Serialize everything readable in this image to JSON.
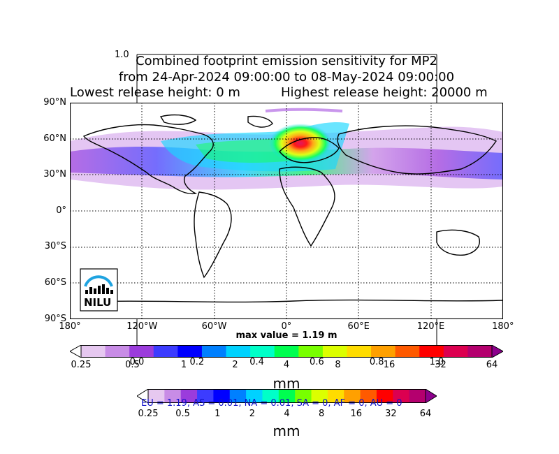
{
  "title": {
    "line1": "Combined footprint emission sensitivity for MP2",
    "line2": "from 24-Apr-2024 09:00:00 to 08-May-2024 09:00:00",
    "line3a": "Lowest release height: 0 m",
    "line3b": "Highest release height: 20000 m"
  },
  "inset_axis_top_label": "1.0",
  "map": {
    "lat_labels": [
      "90°N",
      "60°N",
      "30°N",
      "0°",
      "30°S",
      "60°S",
      "90°S"
    ],
    "lon_labels": [
      "180°",
      "120°W",
      "60°W",
      "0°",
      "60°E",
      "120°E",
      "180°"
    ],
    "max_value_label": "max value = 1.19 m",
    "logo_text": "NILU"
  },
  "colorbar_main": {
    "tick_labels": [
      "0.25",
      "0.5",
      "1",
      "2",
      "4",
      "8",
      "16",
      "32",
      "64"
    ],
    "unit": "mm",
    "colors": [
      "#ffffff",
      "#e6c8f0",
      "#c88ce6",
      "#9b3cdc",
      "#3c3cff",
      "#0000ff",
      "#0080ff",
      "#00d2ff",
      "#00ffc8",
      "#00ff50",
      "#78ff00",
      "#dcff00",
      "#ffdc00",
      "#ffa000",
      "#ff5a00",
      "#ff0000",
      "#dc0050",
      "#b4006e",
      "#8c008c"
    ]
  },
  "inset_axis_ticks": [
    "0.0",
    "0.2",
    "0.4",
    "0.6",
    "0.8",
    "1.0"
  ],
  "colorbar_secondary": {
    "tick_labels": [
      "0.25",
      "0.5",
      "1",
      "2",
      "4",
      "8",
      "16",
      "32",
      "64"
    ],
    "unit": "mm",
    "overlay_text": "EU = 1.19,  AS = 0.01,  NA = 0.01,  SA = 0,  AF = 0,  AU = 0"
  }
}
